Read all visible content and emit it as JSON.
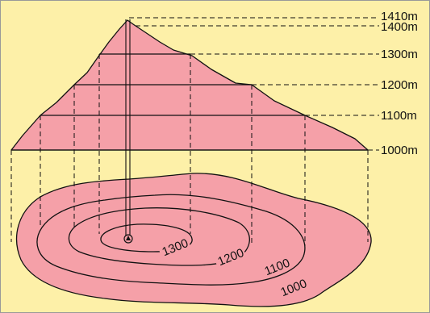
{
  "colors": {
    "background": "#fdf0a8",
    "terrain": "#f5a0a8",
    "line": "#111111"
  },
  "elevation_labels": [
    "1410m",
    "1400m",
    "1300m",
    "1200m",
    "1100m",
    "1000m"
  ],
  "contour_labels": [
    "1300",
    "1200",
    "1100",
    "1000"
  ]
}
